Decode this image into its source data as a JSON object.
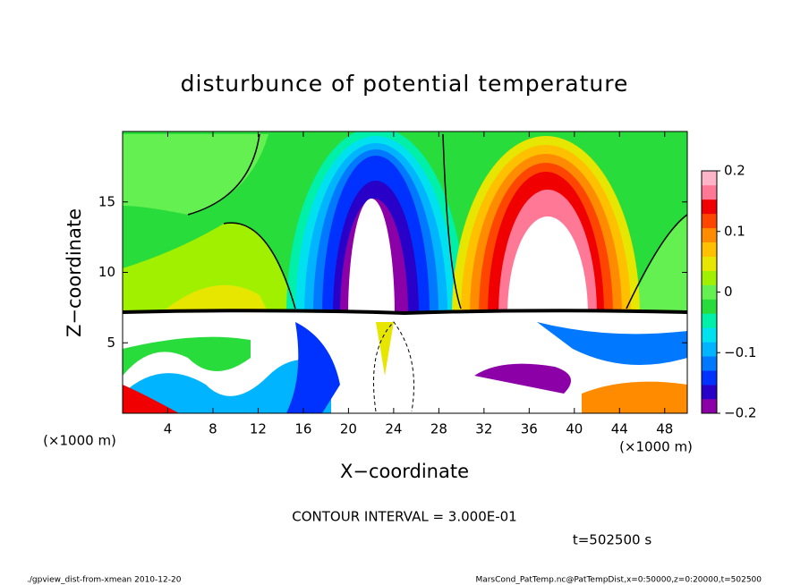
{
  "chart_data": {
    "type": "contour",
    "title": "disturbunce of potential temperature",
    "x_label": "X−coordinate",
    "y_label": "Z−coordinate",
    "y_unit": "(×1000 m)",
    "x_unit": "(×1000 m)",
    "xlim": [
      0,
      50
    ],
    "xticks": [
      4,
      8,
      12,
      16,
      20,
      24,
      28,
      32,
      36,
      40,
      44,
      48
    ],
    "ylim": [
      0,
      20
    ],
    "yticks": [
      5,
      10,
      15
    ],
    "colorbar": {
      "lim": [
        -0.2,
        0.2
      ],
      "ticks": [
        {
          "value": -0.2,
          "label": "−0.2"
        },
        {
          "value": -0.1,
          "label": "−0.1"
        },
        0,
        0.1,
        0.2
      ],
      "colors": [
        "#8c00a8",
        "#2800c8",
        "#0032ff",
        "#0078ff",
        "#00b4ff",
        "#00e1f0",
        "#00f0aa",
        "#28dc3c",
        "#64f050",
        "#a0f000",
        "#e6e600",
        "#ffc000",
        "#ff8c00",
        "#ff4600",
        "#f00000",
        "#ff7896",
        "#ffb4c8"
      ]
    },
    "contour_interval": "CONTOUR INTERVAL = 3.000E-01",
    "time": "t=502500 s"
  },
  "footer": {
    "left": "./gpview_dist-from-xmean  2010-12-20",
    "right": "MarsCond_PatTemp.nc@PatTempDist,x=0:50000,z=0:20000,t=502500"
  }
}
